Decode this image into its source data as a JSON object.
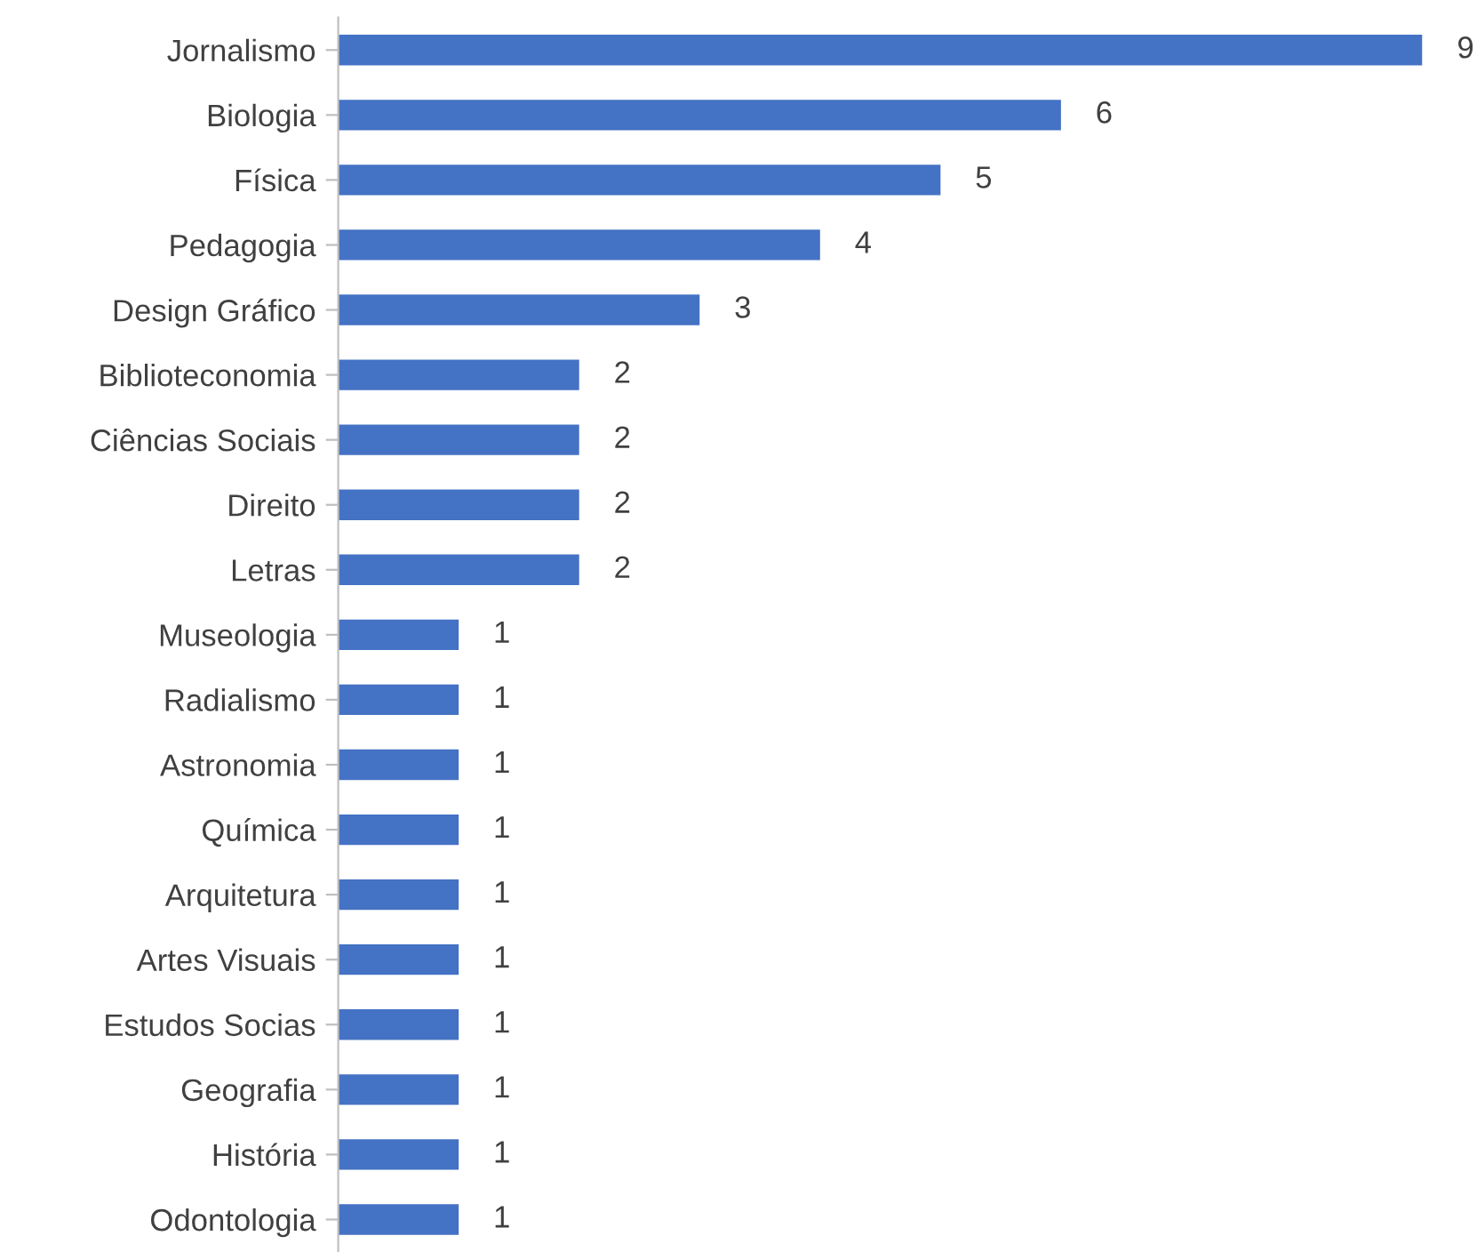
{
  "chart_data": {
    "type": "bar",
    "orientation": "horizontal",
    "categories": [
      "Jornalismo",
      "Biologia",
      "Física",
      "Pedagogia",
      "Design Gráfico",
      "Biblioteconomia",
      "Ciências Sociais",
      "Direito",
      "Letras",
      "Museologia",
      "Radialismo",
      "Astronomia",
      "Química",
      "Arquitetura",
      "Artes Visuais",
      "Estudos Socias",
      "Geografia",
      "História",
      "Odontologia"
    ],
    "values": [
      9,
      6,
      5,
      4,
      3,
      2,
      2,
      2,
      2,
      1,
      1,
      1,
      1,
      1,
      1,
      1,
      1,
      1,
      1
    ],
    "color": "#4472c4",
    "data_labels": true,
    "grid": false,
    "legend": false
  }
}
